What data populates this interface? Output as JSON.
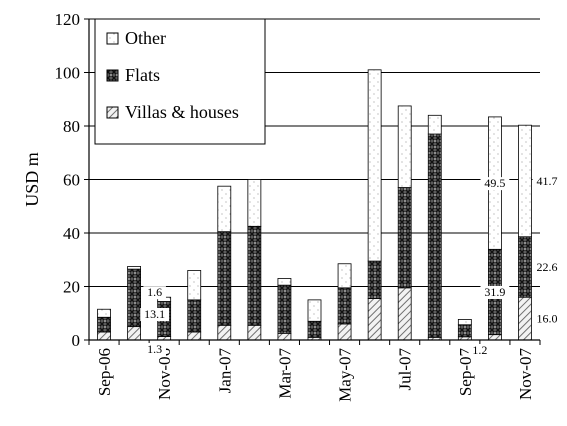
{
  "chart_data": {
    "type": "bar",
    "stacked": true,
    "ylabel": "USD m",
    "xlabel": "",
    "ylim": [
      0,
      120
    ],
    "yticks": [
      0,
      20,
      40,
      60,
      80,
      100,
      120
    ],
    "grid": true,
    "legend_position": "top-left",
    "categories": [
      "Sep-06",
      "Oct-06",
      "Nov-06",
      "Dec-06",
      "Jan-07",
      "Feb-07",
      "Mar-07",
      "Apr-07",
      "May-07",
      "Jun-07",
      "Jul-07",
      "Aug-07",
      "Sep-07",
      "Oct-07",
      "Nov-07"
    ],
    "x_tick_labels": [
      "Sep-06",
      "",
      "Nov-06",
      "",
      "Jan-07",
      "",
      "Mar-07",
      "",
      "May-07",
      "",
      "Jul-07",
      "",
      "Sep-07",
      "",
      "Nov-07"
    ],
    "series": [
      {
        "name": "Villas & houses",
        "values": [
          3,
          5,
          1.3,
          3,
          5.5,
          5.5,
          2.5,
          1,
          6,
          15.5,
          19.5,
          1,
          1.2,
          2,
          16.0
        ]
      },
      {
        "name": "Flats",
        "values": [
          5.5,
          21.5,
          13.1,
          12,
          35,
          37,
          18,
          6,
          13.5,
          14,
          37.5,
          76,
          4.5,
          31.9,
          22.6
        ]
      },
      {
        "name": "Other",
        "values": [
          3,
          1,
          1.6,
          11,
          17,
          17.5,
          2.5,
          8,
          9,
          71.5,
          30.5,
          7,
          2,
          49.5,
          41.7
        ]
      }
    ],
    "data_labels": [
      {
        "category": "Nov-06",
        "series": "Other",
        "text": "1.6"
      },
      {
        "category": "Nov-06",
        "series": "Flats",
        "text": "13.1"
      },
      {
        "category": "Nov-06",
        "series": "Villas & houses",
        "text": "1.3"
      },
      {
        "category": "Sep-07",
        "series": "Villas & houses",
        "text": "1.2"
      },
      {
        "category": "Oct-07",
        "series": "Other",
        "text": "49.5"
      },
      {
        "category": "Oct-07",
        "series": "Flats",
        "text": "31.9"
      },
      {
        "category": "Nov-07",
        "series": "Other",
        "text": "41.7"
      },
      {
        "category": "Nov-07",
        "series": "Flats",
        "text": "22.6"
      },
      {
        "category": "Nov-07",
        "series": "Villas & houses",
        "text": "16.0"
      }
    ],
    "legend": {
      "entries": [
        {
          "series": "Other",
          "label": "Other"
        },
        {
          "series": "Flats",
          "label": "Flats"
        },
        {
          "series": "Villas & houses",
          "label": "Villas & houses"
        }
      ]
    }
  }
}
